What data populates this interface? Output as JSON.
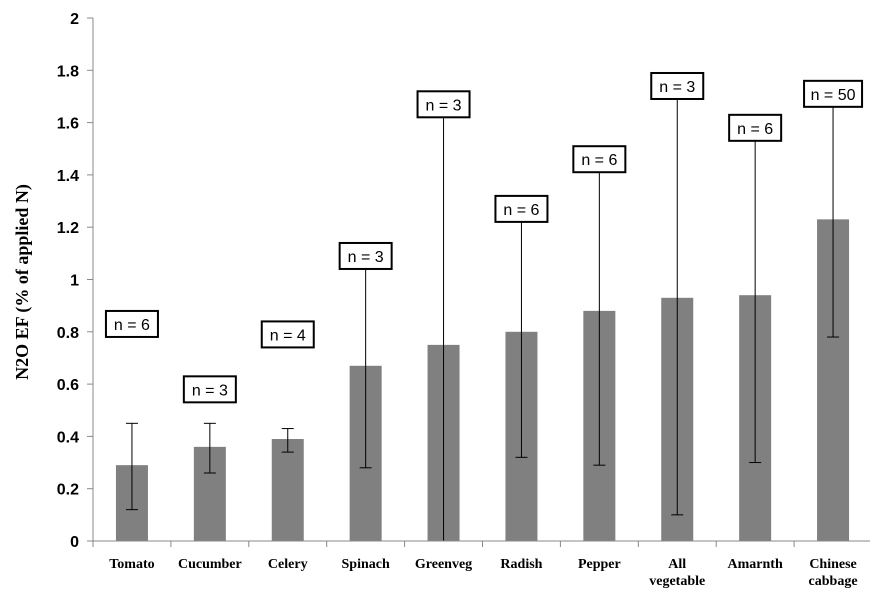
{
  "chart_data": {
    "type": "bar",
    "ylabel": "N2O EF (% of applied N)",
    "xlabel": "",
    "ylim": [
      0,
      2
    ],
    "yticks": [
      "0",
      "0.2",
      "0.4",
      "0.6",
      "0.8",
      "1",
      "1.2",
      "1.4",
      "1.6",
      "1.8",
      "2"
    ],
    "categories": [
      [
        "Tomato"
      ],
      [
        "Cucumber"
      ],
      [
        "Celery"
      ],
      [
        "Spinach"
      ],
      [
        "Greenveg"
      ],
      [
        "Radish"
      ],
      [
        "Pepper"
      ],
      [
        "All",
        "vegetable"
      ],
      [
        "Amarnth"
      ],
      [
        "Chinese",
        "cabbage"
      ]
    ],
    "values": [
      0.29,
      0.36,
      0.39,
      0.67,
      0.75,
      0.8,
      0.88,
      0.93,
      0.94,
      1.23
    ],
    "error_low": [
      0.12,
      0.26,
      0.34,
      0.28,
      0.0,
      0.32,
      0.29,
      0.1,
      0.3,
      0.78
    ],
    "error_high": [
      0.45,
      0.45,
      0.43,
      1.05,
      1.72,
      1.27,
      1.45,
      1.77,
      1.59,
      1.69
    ],
    "annotations": [
      "n = 6",
      "n = 3",
      "n = 4",
      "n = 3",
      "n = 3",
      "n = 6",
      "n = 6",
      "n = 3",
      "n = 6",
      "n = 50"
    ],
    "annotation_levels": [
      0.83,
      0.58,
      0.79,
      1.09,
      1.67,
      1.27,
      1.46,
      1.74,
      1.58,
      1.71
    ],
    "bar_color": "#808080",
    "grid": false,
    "legend": "none"
  }
}
